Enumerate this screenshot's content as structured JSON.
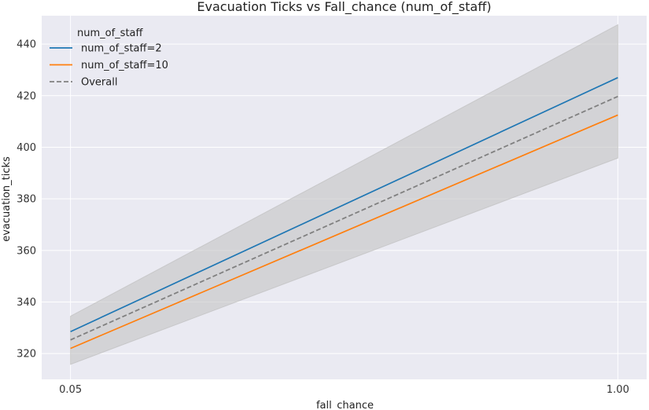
{
  "chart_data": {
    "type": "line",
    "title": "Evacuation Ticks vs Fall_chance (num_of_staff)",
    "xlabel": "fall_chance",
    "ylabel": "evacuation_ticks",
    "x": [
      0.05,
      1.0
    ],
    "x_tick_labels": [
      "0.05",
      "1.00"
    ],
    "y_ticks": [
      320,
      340,
      360,
      380,
      400,
      420,
      440
    ],
    "xlim": [
      0.0,
      1.05
    ],
    "ylim": [
      310,
      451
    ],
    "grid": true,
    "legend": {
      "title": "num_of_staff",
      "placement": "top-left",
      "entries": [
        "num_of_staff=2",
        "num_of_staff=10",
        "Overall"
      ]
    },
    "series": [
      {
        "name": "num_of_staff=2",
        "values": [
          328.5,
          427.0
        ],
        "color": "#1f77b4",
        "style": "solid"
      },
      {
        "name": "num_of_staff=10",
        "values": [
          322.0,
          412.5
        ],
        "color": "#ff7f0e",
        "style": "solid"
      },
      {
        "name": "Overall",
        "values": [
          325.3,
          419.7
        ],
        "color": "#808080",
        "style": "dashed"
      }
    ],
    "confidence_band": {
      "lower": [
        315.8,
        395.8
      ],
      "upper": [
        334.5,
        447.5
      ],
      "color": "#bfbfbf"
    },
    "colors": {
      "plot_background": "#eaeaf2",
      "grid": "#ffffff"
    }
  }
}
